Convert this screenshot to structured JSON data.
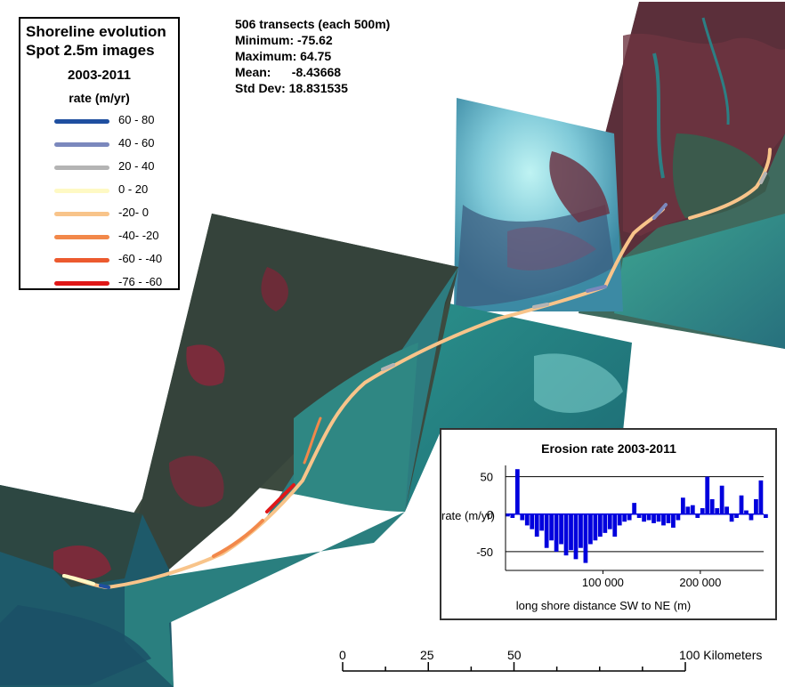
{
  "legend": {
    "title_line1": "Shoreline evolution",
    "title_line2": "Spot 2.5m images",
    "period": "2003-2011",
    "unit_label": "rate (m/yr)",
    "classes": [
      {
        "label": "60 - 80",
        "color": "#1f4fa0"
      },
      {
        "label": "40 - 60",
        "color": "#7b88bd"
      },
      {
        "label": "20 - 40",
        "color": "#b4b4b4"
      },
      {
        "label": "0 - 20",
        "color": "#fef9c4"
      },
      {
        "label": "-20- 0",
        "color": "#f8c48a"
      },
      {
        "label": "-40- -20",
        "color": "#f2884a"
      },
      {
        "label": "-60 - -40",
        "color": "#ec5a2e"
      },
      {
        "label": "-76 - -60",
        "color": "#e01818"
      }
    ]
  },
  "stats": {
    "line1": "506 transects (each 500m)",
    "line2": "Minimum: -75.62",
    "line3": "Maximum: 64.75",
    "line4": "Mean:      -8.43668",
    "line5": "Std Dev: 18.831535"
  },
  "chart_data": {
    "type": "bar",
    "title": "Erosion rate 2003-2011",
    "xlabel": "long shore distance  SW to NE (m)",
    "ylabel": "rate (m/yr)",
    "ylim": [
      -75,
      65
    ],
    "xlim": [
      0,
      265000
    ],
    "y_ticks": [
      50,
      0,
      -50
    ],
    "y_tick_labels": [
      "50",
      "0",
      "-50"
    ],
    "x_ticks": [
      100000,
      200000
    ],
    "x_tick_labels": [
      "100 000",
      "200 000"
    ],
    "grid": true,
    "color": "#0000dd",
    "x": [
      0,
      5000,
      10000,
      15000,
      20000,
      25000,
      30000,
      35000,
      40000,
      45000,
      50000,
      55000,
      60000,
      65000,
      70000,
      75000,
      80000,
      85000,
      90000,
      95000,
      100000,
      105000,
      110000,
      115000,
      120000,
      125000,
      130000,
      135000,
      140000,
      145000,
      150000,
      155000,
      160000,
      165000,
      170000,
      175000,
      180000,
      185000,
      190000,
      195000,
      200000,
      205000,
      210000,
      215000,
      220000,
      225000,
      230000,
      235000,
      240000,
      245000,
      250000,
      255000,
      260000,
      265000
    ],
    "values": [
      -3,
      -5,
      60,
      -8,
      -15,
      -20,
      -30,
      -22,
      -45,
      -35,
      -50,
      -40,
      -55,
      -48,
      -60,
      -45,
      -65,
      -40,
      -35,
      -30,
      -25,
      -20,
      -30,
      -15,
      -10,
      -8,
      15,
      -5,
      -10,
      -8,
      -12,
      -10,
      -15,
      -12,
      -18,
      -8,
      22,
      10,
      12,
      -5,
      8,
      50,
      20,
      8,
      38,
      10,
      -10,
      -5,
      25,
      5,
      -8,
      20,
      45,
      -5
    ]
  },
  "scale_bar": {
    "labels": [
      "0",
      "25",
      "50",
      "100 Kilometers"
    ]
  }
}
